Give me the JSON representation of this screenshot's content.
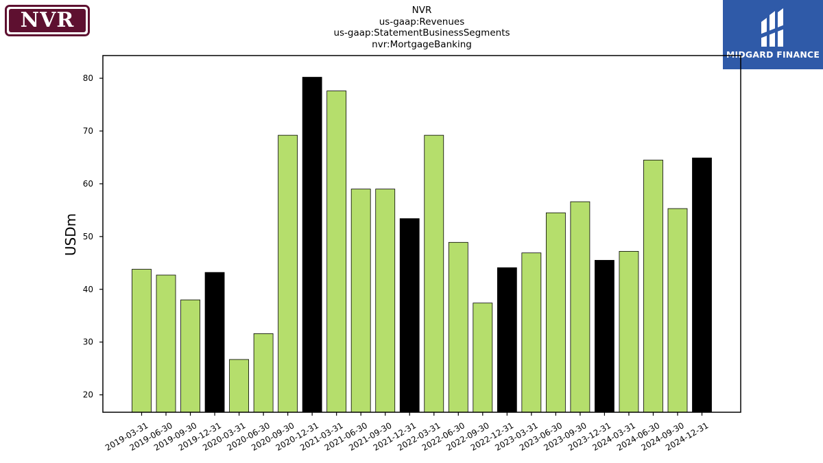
{
  "logos": {
    "company": {
      "text": "NVR",
      "color": "#5e1030"
    },
    "watermark": {
      "text": "MIDGARD FINANCE",
      "color": "#2f5aa8"
    }
  },
  "chart_data": {
    "type": "bar",
    "title_lines": [
      "NVR",
      "us-gaap:Revenues",
      "us-gaap:StatementBusinessSegments",
      "nvr:MortgageBanking"
    ],
    "xlabel": "",
    "ylabel": "USDm",
    "ylim": [
      16.7,
      84.3
    ],
    "yticks": [
      20,
      30,
      40,
      50,
      60,
      70,
      80
    ],
    "grid": false,
    "categories": [
      "2019-03-31",
      "2019-06-30",
      "2019-09-30",
      "2019-12-31",
      "2020-03-31",
      "2020-06-30",
      "2020-09-30",
      "2020-12-31",
      "2021-03-31",
      "2021-06-30",
      "2021-09-30",
      "2021-12-31",
      "2022-03-31",
      "2022-06-30",
      "2022-09-30",
      "2022-12-31",
      "2023-03-31",
      "2023-06-30",
      "2023-09-30",
      "2023-12-31",
      "2024-03-31",
      "2024-06-30",
      "2024-09-30",
      "2024-12-31"
    ],
    "values": [
      43.8,
      42.7,
      38.0,
      43.2,
      26.7,
      31.6,
      69.2,
      80.2,
      77.6,
      59.0,
      59.0,
      53.4,
      69.2,
      48.9,
      37.4,
      44.1,
      46.9,
      54.5,
      56.6,
      45.5,
      47.2,
      64.5,
      55.3,
      64.9
    ],
    "colors": {
      "quarter": "#b5de6c",
      "year_end": "#000000",
      "edge": "#000000"
    }
  }
}
